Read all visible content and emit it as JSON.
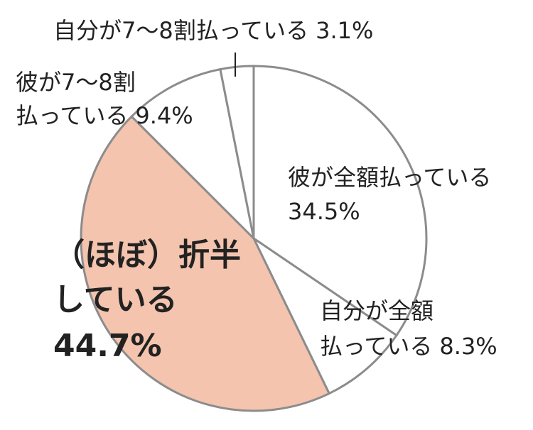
{
  "chart_data": {
    "type": "pie",
    "categories": [
      [
        "彼が全額払っている"
      ],
      [
        "自分が全額",
        "払っている"
      ],
      [
        "（ほぼ）折半",
        "している"
      ],
      [
        "彼が7～8割",
        "払っている"
      ],
      [
        "自分が7～8割払っている"
      ]
    ],
    "values": [
      34.5,
      8.3,
      44.7,
      9.4,
      3.1
    ],
    "value_labels": [
      "34.5%",
      "8.3%",
      "44.7%",
      "9.4%",
      "3.1%"
    ],
    "colors": [
      "#ffffff",
      "#ffffff",
      "#f4c4ae",
      "#ffffff",
      "#ffffff"
    ],
    "edge_color": "#8c8c8c"
  }
}
